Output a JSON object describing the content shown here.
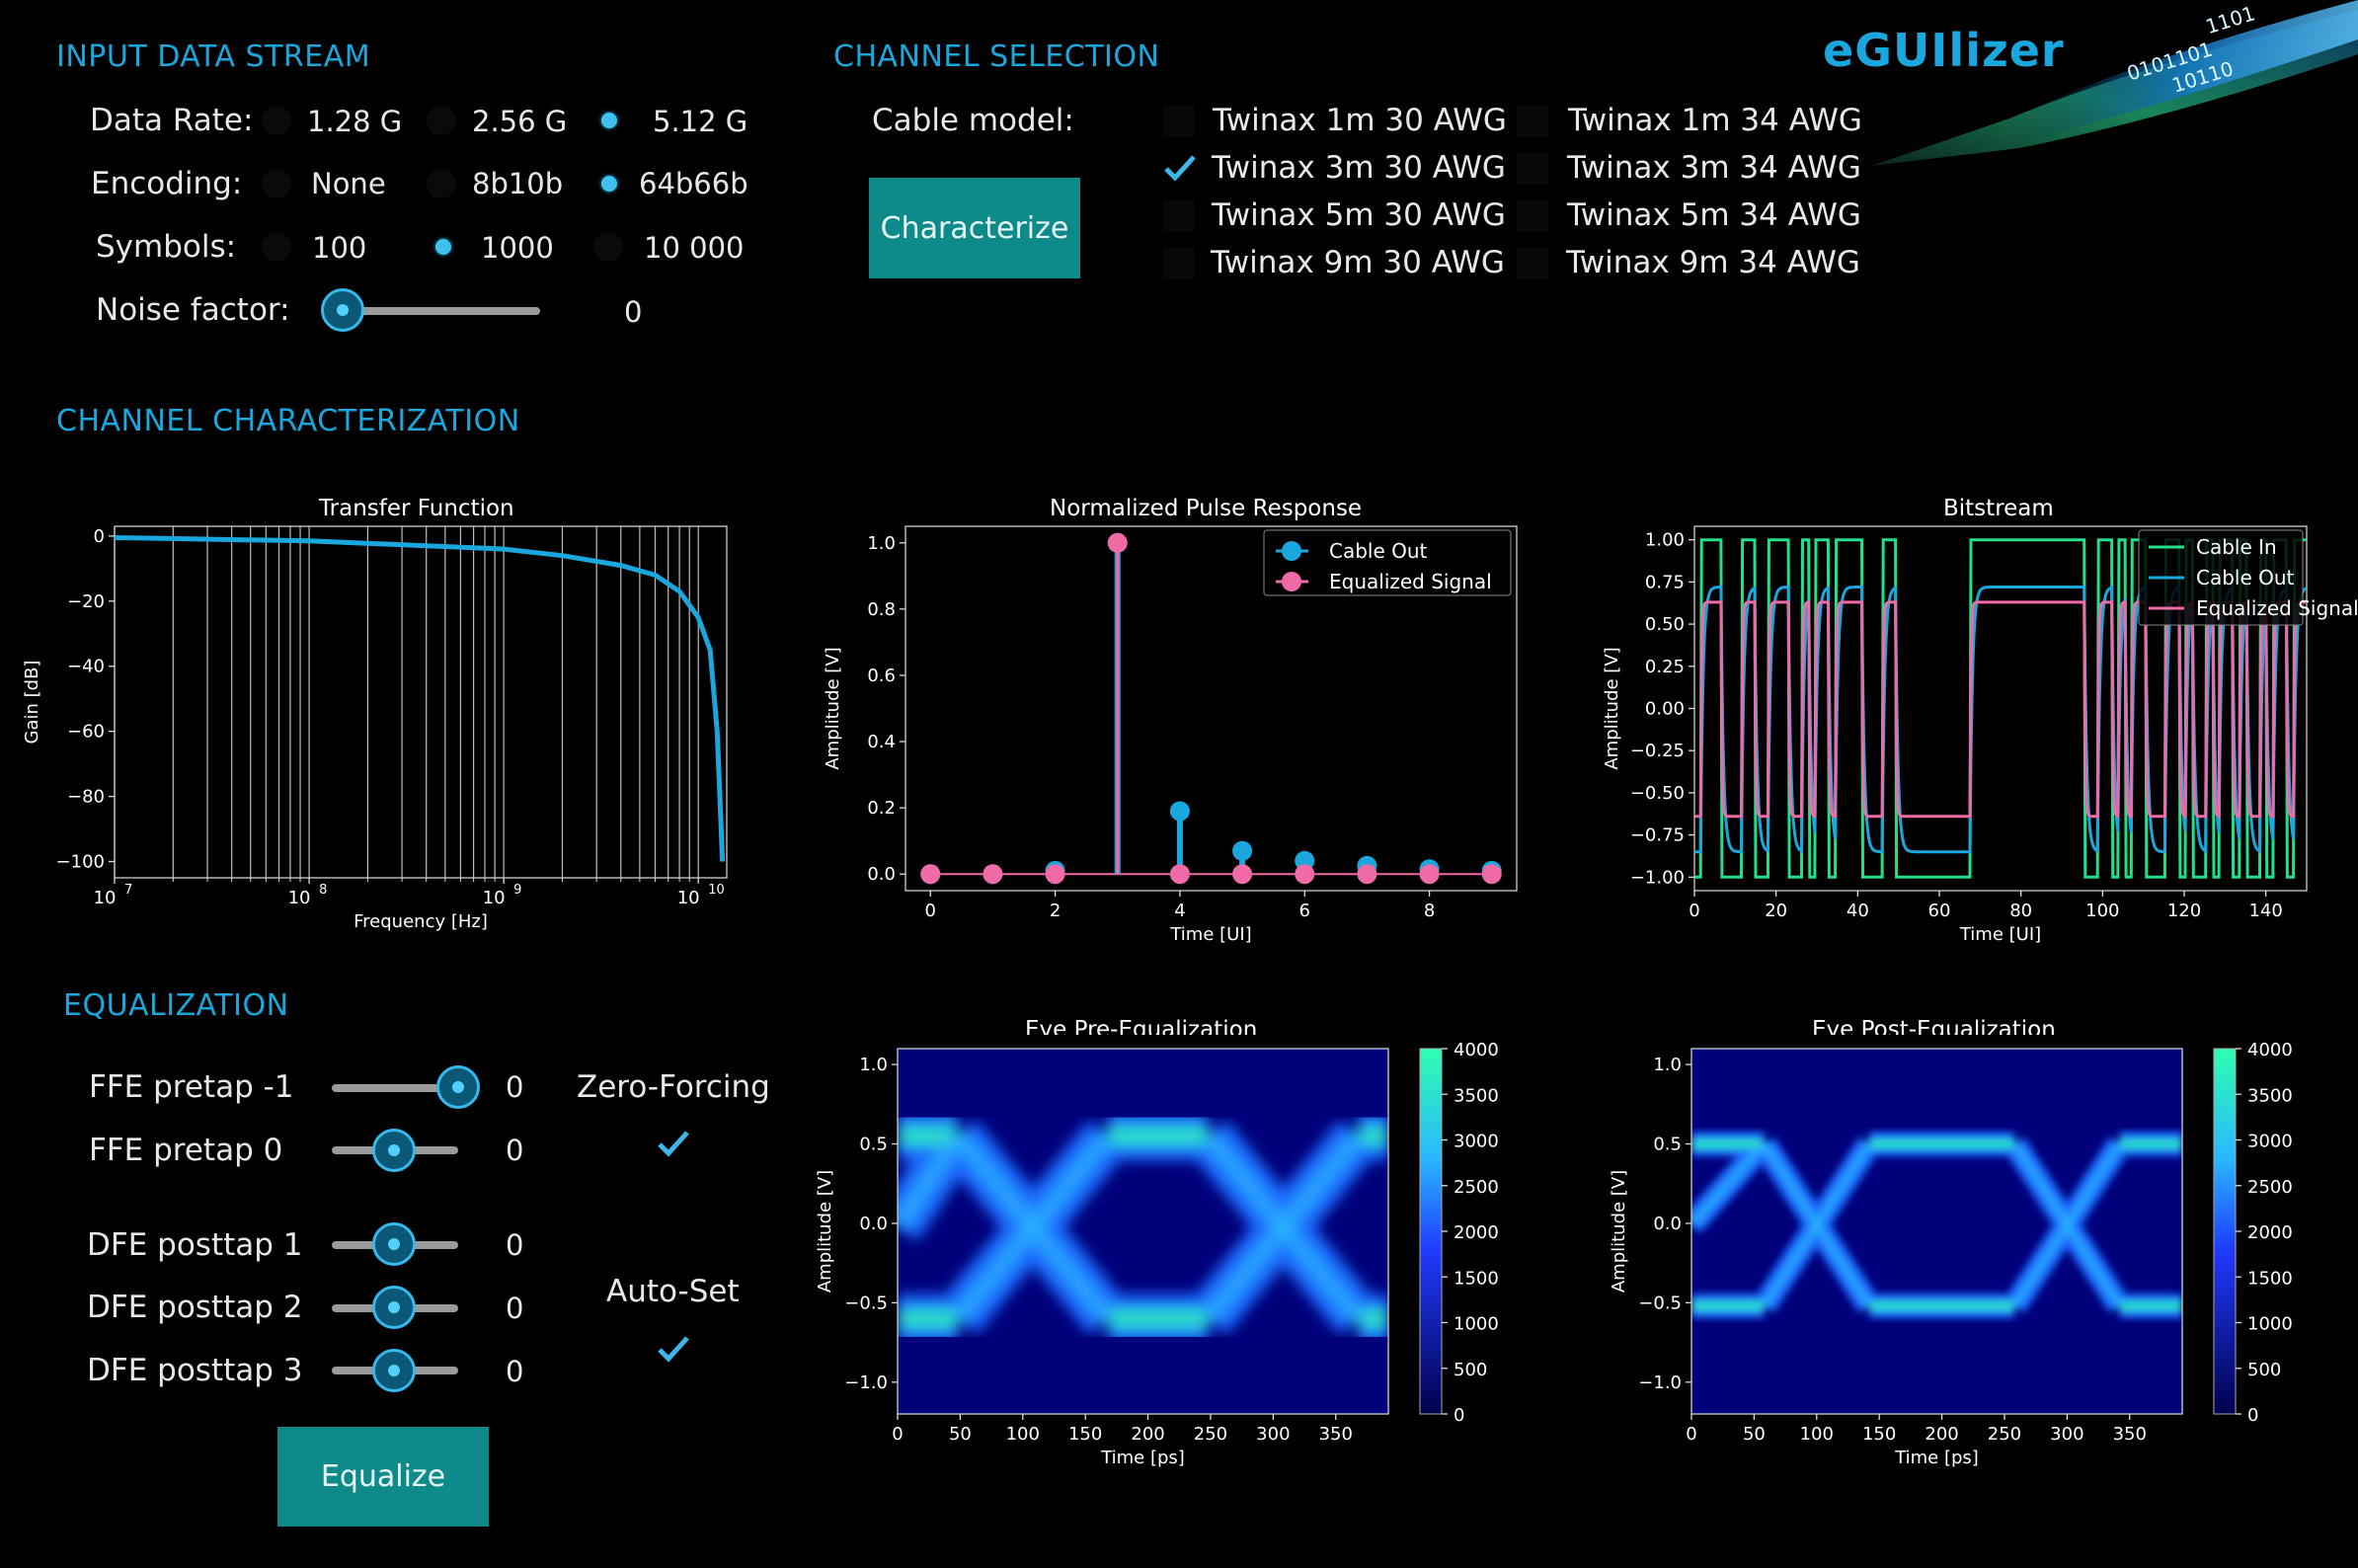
{
  "app": {
    "logo": "eGUIlizer",
    "logo_color": "#1aa7dd",
    "accent": "#1aa7dd",
    "button_color": "#0f8a8a"
  },
  "input": {
    "title": "INPUT DATA STREAM",
    "rate_label": "Data Rate:",
    "rate_options": [
      "1.28 G",
      "2.56 G",
      "5.12 G"
    ],
    "rate_selected": "5.12 G",
    "enc_label": "Encoding:",
    "enc_options": [
      "None",
      "8b10b",
      "64b66b"
    ],
    "enc_selected": "64b66b",
    "sym_label": "Symbols:",
    "sym_options": [
      "100",
      "1000",
      "10 000"
    ],
    "sym_selected": "1000",
    "noise_label": "Noise factor:",
    "noise_value": "0",
    "noise_level": 0.0
  },
  "channel": {
    "title": "CHANNEL SELECTION",
    "cable_label": "Cable model:",
    "characterize_label": "Characterize",
    "cables_30": [
      "Twinax 1m 30 AWG",
      "Twinax 3m 30 AWG",
      "Twinax 5m 30 AWG",
      "Twinax 9m 30 AWG"
    ],
    "cables_34": [
      "Twinax 1m 34 AWG",
      "Twinax 3m 34 AWG",
      "Twinax 5m 34 AWG",
      "Twinax 9m 34 AWG"
    ],
    "selected": "Twinax 3m 30 AWG"
  },
  "characterization": {
    "title": "CHANNEL CHARACTERIZATION"
  },
  "equalization": {
    "title": "EQUALIZATION",
    "ffe_m1_label": "FFE pretap -1",
    "ffe_m1_value": "0",
    "ffe_0_label": "FFE pretap 0",
    "ffe_0_value": "0",
    "dfe_1_label": "DFE posttap 1",
    "dfe_1_value": "0",
    "dfe_2_label": "DFE posttap 2",
    "dfe_2_value": "0",
    "dfe_3_label": "DFE posttap 3",
    "dfe_3_value": "0",
    "zf_label": "Zero-Forcing",
    "zf_checked": true,
    "auto_label": "Auto-Set",
    "auto_checked": true,
    "equalize_label": "Equalize"
  },
  "chart_data": [
    {
      "type": "line",
      "title": "Transfer Function",
      "xlabel": "Frequency [Hz]",
      "ylabel": "Gain [dB]",
      "xscale": "log",
      "xlim": [
        10000000.0,
        14000000000.0
      ],
      "ylim": [
        -105,
        3
      ],
      "xticks": [
        "10^7",
        "10^8",
        "10^9",
        "10^10"
      ],
      "yticks": [
        0,
        -20,
        -40,
        -60,
        -80,
        -100
      ],
      "x": [
        10000000.0,
        100000000.0,
        1000000000.0,
        2000000000.0,
        4000000000.0,
        6000000000.0,
        8000000000.0,
        10000000000.0,
        11500000000.0,
        12500000000.0,
        13000000000.0,
        13300000000.0
      ],
      "y": [
        -0.5,
        -1.5,
        -4,
        -6,
        -9,
        -12,
        -17,
        -25,
        -35,
        -60,
        -85,
        -100
      ],
      "color": "#1aa7dd",
      "grid": "vertical"
    },
    {
      "type": "stem",
      "title": "Normalized Pulse Response",
      "xlabel": "Time [UI]",
      "ylabel": "Amplitude [V]",
      "xlim": [
        -0.4,
        9.4
      ],
      "ylim": [
        -0.05,
        1.05
      ],
      "xticks": [
        0,
        2,
        4,
        6,
        8
      ],
      "yticks": [
        0.0,
        0.2,
        0.4,
        0.6,
        0.8,
        1.0
      ],
      "x": [
        0,
        1,
        2,
        3,
        4,
        5,
        6,
        7,
        8,
        9
      ],
      "series": [
        {
          "name": "Cable Out",
          "color": "#1aa7dd",
          "values": [
            0.0,
            0.0,
            0.01,
            1.0,
            0.19,
            0.07,
            0.04,
            0.025,
            0.015,
            0.01
          ]
        },
        {
          "name": "Equalized Signal",
          "color": "#f06aa8",
          "values": [
            0.0,
            0.0,
            0.0,
            1.0,
            0.0,
            0.0,
            0.0,
            0.0,
            0.0,
            0.0
          ]
        }
      ],
      "legend": "top-right"
    },
    {
      "type": "line",
      "title": "Bitstream",
      "xlabel": "Time [UI]",
      "ylabel": "Amplitude [V]",
      "xlim": [
        0,
        150
      ],
      "ylim": [
        -1.08,
        1.08
      ],
      "xticks": [
        0,
        20,
        40,
        60,
        80,
        100,
        120,
        140
      ],
      "yticks": [
        1.0,
        0.75,
        0.5,
        0.25,
        0.0,
        -0.25,
        -0.5,
        -0.75,
        -1.0
      ],
      "bits": [
        0,
        1,
        1,
        1,
        0,
        0,
        0,
        1,
        1,
        0,
        0,
        1,
        1,
        1,
        0,
        0,
        1,
        0,
        1,
        1,
        0,
        1,
        1,
        1,
        1,
        0,
        0,
        0,
        1,
        1,
        0,
        0,
        0,
        0,
        0,
        0,
        0,
        0,
        0,
        0,
        0,
        1,
        1,
        1,
        1,
        1,
        1,
        1,
        1,
        1,
        1,
        1,
        1,
        1,
        1,
        1,
        1,
        1,
        0,
        0,
        1,
        1,
        0,
        1,
        0,
        1,
        1,
        0,
        0,
        0,
        1,
        1,
        0,
        1,
        0,
        0,
        1,
        0,
        1,
        1,
        0,
        1,
        0,
        0,
        1,
        0,
        1,
        1,
        0,
        1
      ],
      "bit_ui": 1.65,
      "series": [
        {
          "name": "Cable In",
          "color": "#22e08a",
          "levels": [
            -1.0,
            1.0
          ]
        },
        {
          "name": "Cable Out",
          "color": "#1aa7dd",
          "levels": [
            -0.85,
            0.72
          ]
        },
        {
          "name": "Equalized Signal",
          "color": "#f06aa8",
          "levels": [
            -0.64,
            0.63
          ]
        }
      ],
      "legend": "top-right"
    },
    {
      "type": "heatmap",
      "title": "Eye Pre-Equalization",
      "xlabel": "Time [ps]",
      "ylabel": "Amplitude [V]",
      "xlim": [
        0,
        392
      ],
      "ylim": [
        -1.2,
        1.1
      ],
      "xticks": [
        0,
        50,
        100,
        150,
        200,
        250,
        300,
        350
      ],
      "yticks": [
        1.0,
        0.5,
        0.0,
        -0.5,
        -1.0
      ],
      "colorbar": [
        0,
        500,
        1000,
        1500,
        2000,
        2500,
        3000,
        3500,
        4000
      ],
      "crossings_ps": [
        108,
        308
      ],
      "levels": [
        0.55,
        -0.6
      ],
      "spread": 0.14
    },
    {
      "type": "heatmap",
      "title": "Eye Post-Equalization",
      "xlabel": "Time [ps]",
      "ylabel": "Amplitude [V]",
      "xlim": [
        0,
        392
      ],
      "ylim": [
        -1.2,
        1.1
      ],
      "xticks": [
        0,
        50,
        100,
        150,
        200,
        250,
        300,
        350
      ],
      "yticks": [
        1.0,
        0.5,
        0.0,
        -0.5,
        -1.0
      ],
      "colorbar": [
        0,
        500,
        1000,
        1500,
        2000,
        2500,
        3000,
        3500,
        4000
      ],
      "crossings_ps": [
        100,
        300
      ],
      "levels": [
        0.5,
        -0.52
      ],
      "spread": 0.07
    }
  ]
}
